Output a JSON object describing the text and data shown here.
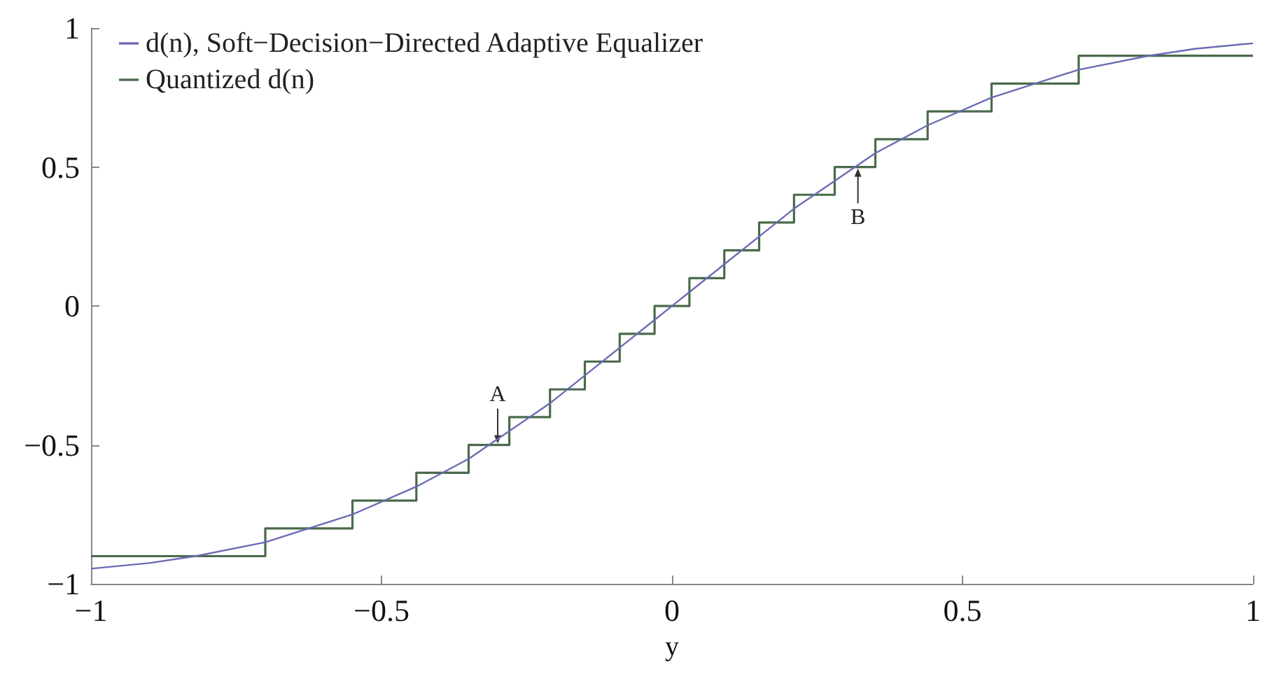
{
  "chart_data": {
    "type": "line",
    "xlabel": "y",
    "xlim": [
      -1,
      1
    ],
    "ylim": [
      -1,
      1
    ],
    "xticks": [
      -1,
      -0.5,
      0,
      0.5,
      1
    ],
    "yticks": [
      -1,
      -0.5,
      0,
      0.5,
      1
    ],
    "grid": false,
    "legend": "top left",
    "marker": "none",
    "series": [
      {
        "name": "d(n), Soft−Decision−Directed Adaptive Equalizer",
        "color": "#6b6bb4",
        "x": [
          -1,
          -0.9,
          -0.82,
          -0.7,
          -0.55,
          -0.44,
          -0.35,
          -0.28,
          -0.21,
          -0.15,
          -0.09,
          -0.03,
          0,
          0.03,
          0.09,
          0.15,
          0.21,
          0.28,
          0.35,
          0.44,
          0.55,
          0.7,
          0.82,
          0.9,
          1
        ],
        "values": [
          -0.945,
          -0.925,
          -0.9,
          -0.85,
          -0.75,
          -0.65,
          -0.55,
          -0.45,
          -0.35,
          -0.25,
          -0.15,
          -0.05,
          0,
          0.05,
          0.15,
          0.25,
          0.35,
          0.45,
          0.55,
          0.65,
          0.75,
          0.85,
          0.9,
          0.925,
          0.945
        ]
      },
      {
        "name": "Quantized d(n)",
        "type": "step",
        "color": "#4a6a4a",
        "x": [
          -1,
          -0.7,
          -0.55,
          -0.44,
          -0.35,
          -0.28,
          -0.21,
          -0.15,
          -0.09,
          -0.03,
          0.03,
          0.09,
          0.15,
          0.21,
          0.28,
          0.35,
          0.44,
          0.55,
          0.7,
          1
        ],
        "values": [
          -0.9,
          -0.8,
          -0.7,
          -0.6,
          -0.5,
          -0.4,
          -0.3,
          -0.2,
          -0.1,
          0,
          0.1,
          0.2,
          0.3,
          0.4,
          0.5,
          0.6,
          0.7,
          0.8,
          0.9,
          0.9
        ]
      }
    ],
    "annotations": [
      {
        "text": "A",
        "x": -0.3,
        "y": -0.5
      },
      {
        "text": "B",
        "x": 0.32,
        "y": 0.5
      }
    ]
  }
}
